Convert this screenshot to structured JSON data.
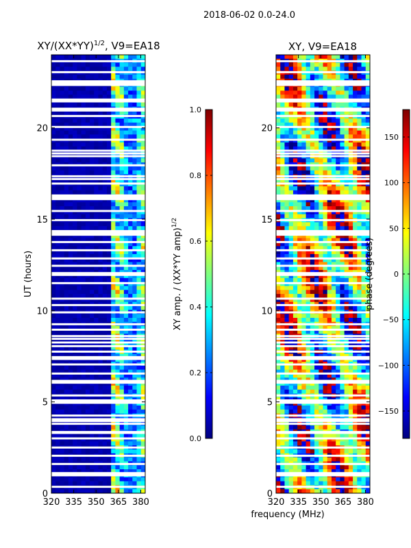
{
  "figure_title": "2018-06-02 0.0-24.0",
  "colors": {
    "jet": [
      "#00007f",
      "#0000ff",
      "#007fff",
      "#00ffff",
      "#7fff7f",
      "#ffff00",
      "#ff7f00",
      "#ff0000",
      "#7f0000"
    ],
    "gap": "#ffffff",
    "axis": "#000000"
  },
  "chart_data": [
    {
      "type": "heatmap",
      "title_main": "XY/(XX*YY)",
      "title_exp": "1/2",
      "title_suffix": ", V9=EA18",
      "xlabel": "",
      "ylabel": "UT (hours)",
      "xlim": [
        320,
        383
      ],
      "ylim": [
        0,
        24
      ],
      "xticks": [
        320,
        335,
        350,
        365,
        380
      ],
      "xtick_labels": [
        "320",
        "335",
        "350",
        "365",
        "380"
      ],
      "yticks": [
        0,
        5,
        10,
        15,
        20
      ],
      "ytick_labels": [
        "0",
        "5",
        "10",
        "15",
        "20"
      ],
      "signal_band_mhz": [
        360,
        383
      ],
      "colorbar": {
        "label_main": "XY amp. / (XX*YY amp)",
        "label_exp": "1/2",
        "range": [
          0.0,
          1.0
        ],
        "ticks": [
          0.0,
          0.2,
          0.4,
          0.6,
          0.8,
          1.0
        ],
        "tick_labels": [
          "0.0",
          "0.2",
          "0.4",
          "0.6",
          "0.8",
          "1.0"
        ]
      }
    },
    {
      "type": "heatmap",
      "title_main": "XY, V9=EA18",
      "xlabel": "frequency (MHz)",
      "ylabel": "",
      "xlim": [
        320,
        383
      ],
      "ylim": [
        0,
        24
      ],
      "xticks": [
        320,
        335,
        350,
        365,
        380
      ],
      "xtick_labels": [
        "320",
        "335",
        "350",
        "365",
        "380"
      ],
      "yticks": [
        0,
        5,
        10,
        15,
        20
      ],
      "ytick_labels": [
        "0",
        "5",
        "10",
        "15",
        "20"
      ],
      "colorbar": {
        "label_main": "phase (degrees)",
        "range": [
          -180,
          180
        ],
        "ticks": [
          -150,
          -100,
          -50,
          0,
          50,
          100,
          150
        ],
        "tick_labels": [
          "−150",
          "−100",
          "−50",
          "0",
          "50",
          "100",
          "150"
        ]
      }
    }
  ],
  "gap_hours": [
    0.35,
    0.98,
    1.02,
    1.06,
    1.1,
    1.6,
    2.05,
    2.5,
    3.0,
    3.3,
    3.35,
    3.8,
    3.95,
    4.05,
    4.25,
    4.95,
    5.02,
    5.08,
    5.35,
    6.05,
    6.15,
    6.55,
    7.05,
    7.35,
    7.45,
    7.75,
    8.05,
    8.25,
    8.45,
    8.6,
    8.95,
    9.25,
    9.9,
    10.3,
    10.65,
    11.5,
    11.95,
    12.05,
    12.45,
    12.85,
    13.3,
    13.75,
    14.15,
    14.25,
    14.35,
    14.95,
    15.45,
    16.1,
    16.2,
    16.3,
    16.95,
    17.2,
    17.35,
    17.95,
    18.45,
    18.6,
    18.75,
    19.35,
    20.05,
    20.65,
    20.95,
    21.05,
    21.45,
    21.55,
    22.35,
    22.45,
    22.55,
    23.05,
    23.65
  ]
}
